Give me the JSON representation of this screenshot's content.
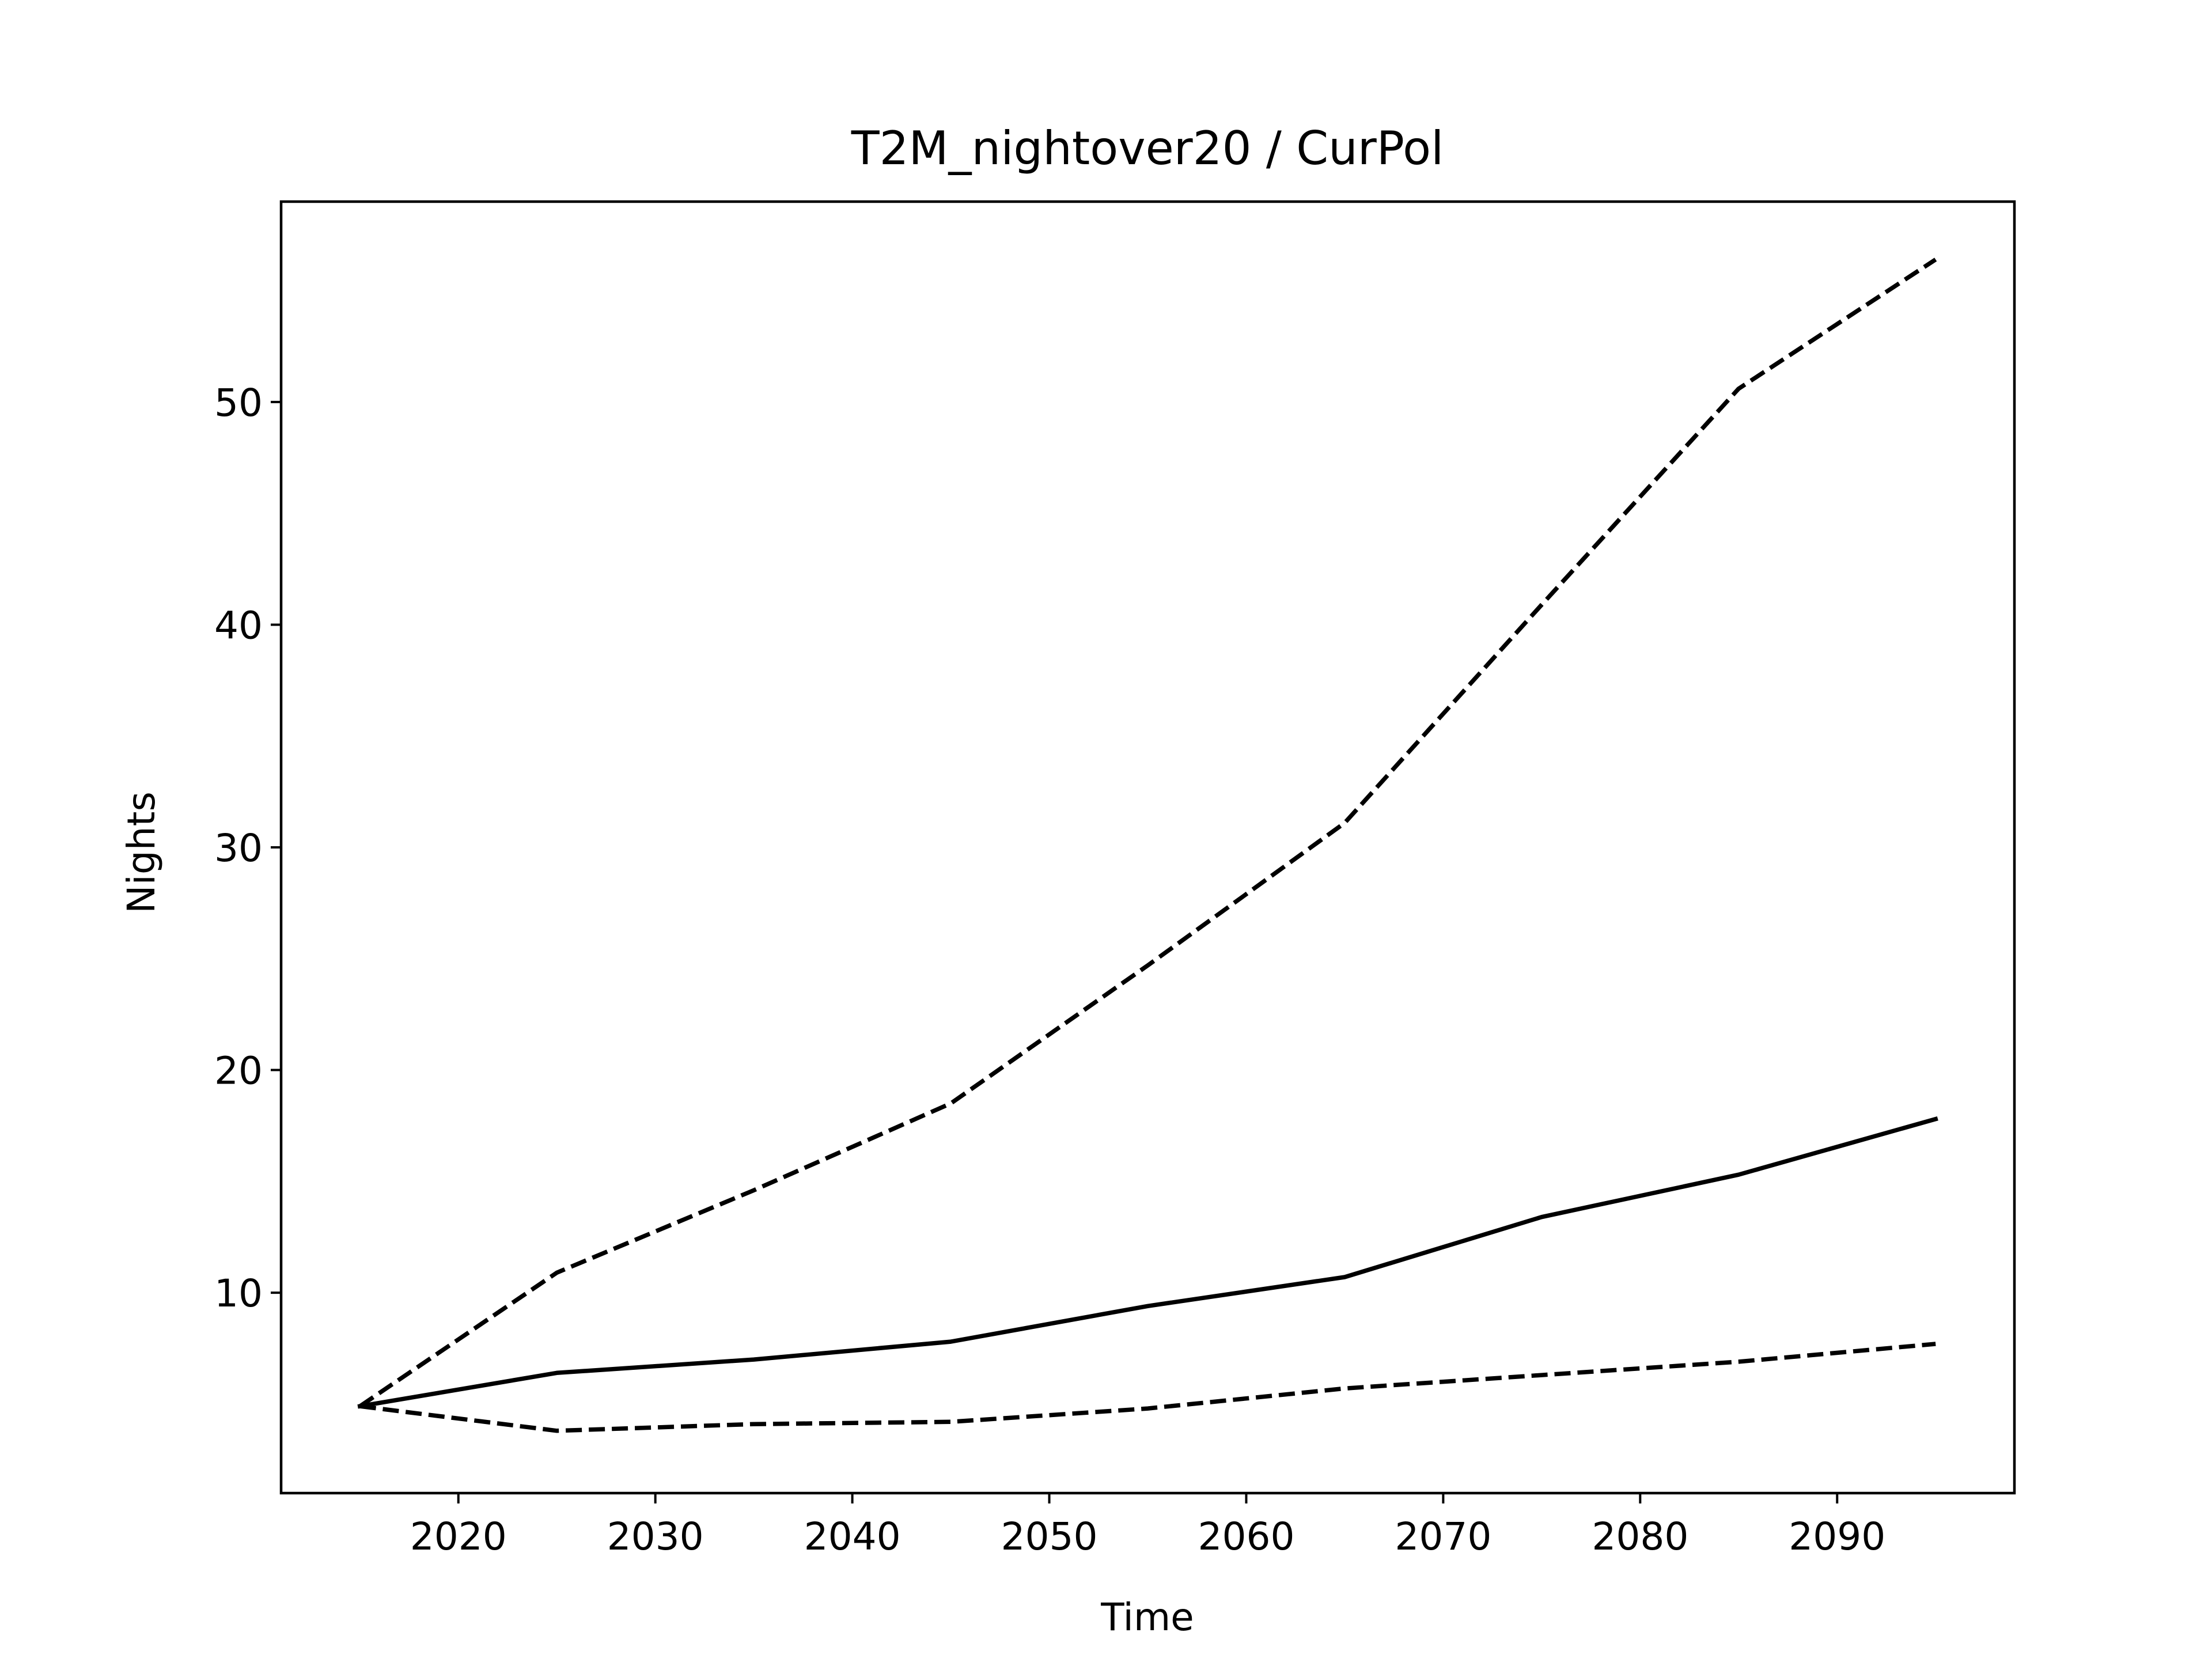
{
  "chart_data": {
    "type": "line",
    "title": "T2M_nightover20 / CurPol",
    "xlabel": "Time",
    "ylabel": "Nights",
    "xlim": [
      2011,
      2099
    ],
    "ylim": [
      1.0,
      59.0
    ],
    "xticks": [
      2020,
      2030,
      2040,
      2050,
      2060,
      2070,
      2080,
      2090
    ],
    "yticks": [
      10,
      20,
      30,
      40,
      50
    ],
    "grid": false,
    "line_color": "#000000",
    "x": [
      2015,
      2025,
      2035,
      2045,
      2055,
      2065,
      2075,
      2085,
      2095
    ],
    "series": [
      {
        "style": "solid",
        "values": [
          4.9,
          6.4,
          7.0,
          7.8,
          9.4,
          10.7,
          13.4,
          15.3,
          17.8
        ]
      },
      {
        "style": "dashed",
        "values": [
          4.9,
          10.9,
          14.6,
          18.5,
          24.7,
          31.1,
          40.9,
          50.6,
          56.4
        ]
      },
      {
        "style": "dashed",
        "values": [
          4.9,
          3.8,
          4.1,
          4.2,
          4.8,
          5.7,
          6.3,
          6.9,
          7.7
        ]
      }
    ]
  }
}
